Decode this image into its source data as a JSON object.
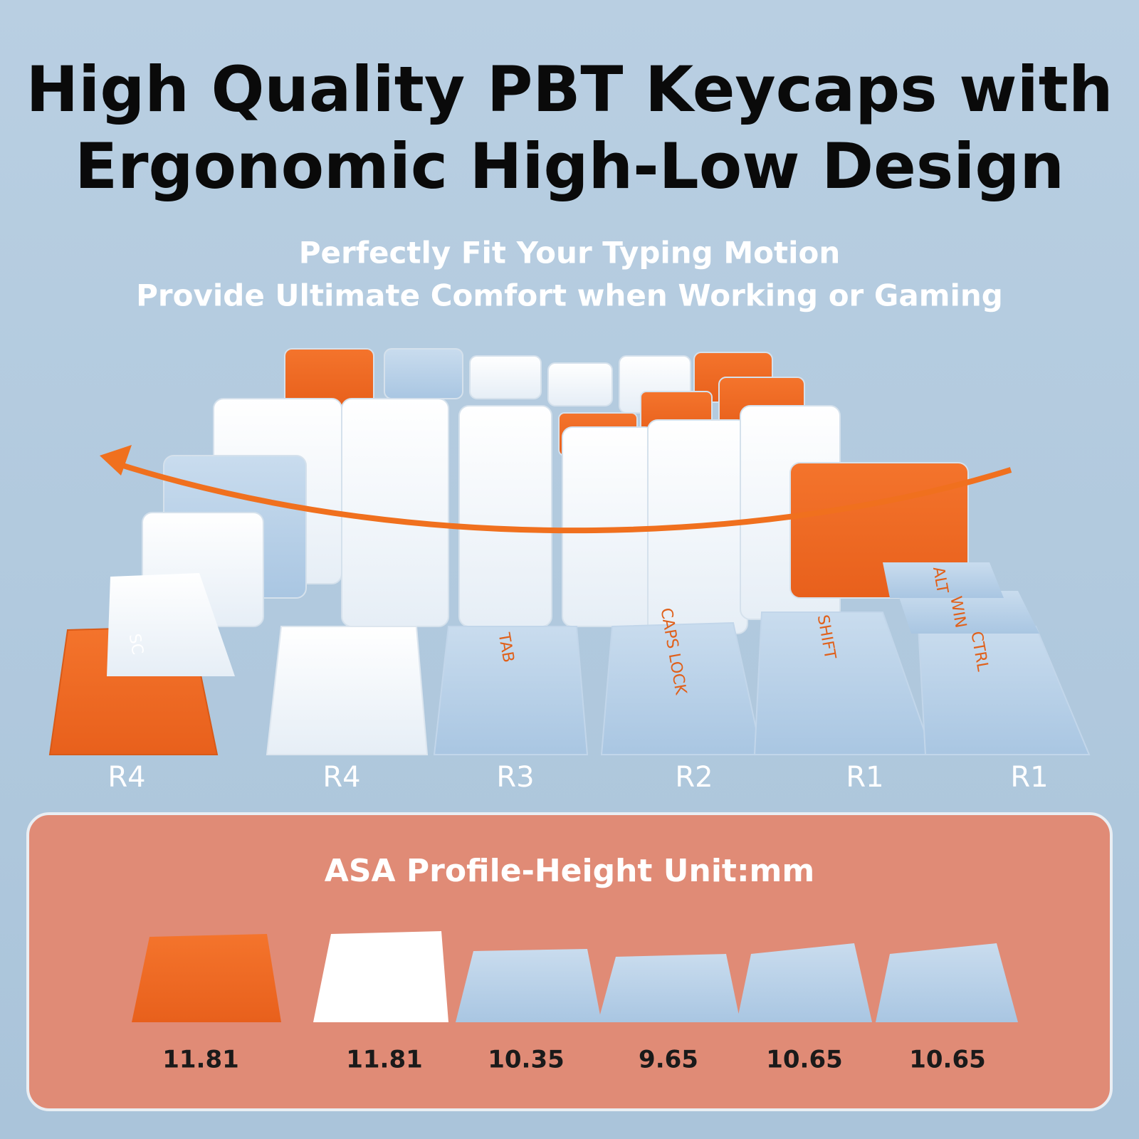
{
  "header": {
    "title_lines": [
      "High Quality PBT Keycaps with",
      "Ergonomic High-Low Design"
    ],
    "subtitle_lines": [
      "Perfectly Fit Your Typing Motion",
      "Provide Ultimate Comfort when Working or Gaming"
    ]
  },
  "keyboard": {
    "key_legends": [
      "SC",
      "TAB",
      "CAPS LOCK",
      "SHIFT",
      "CTRL",
      "WIN",
      "ALT"
    ],
    "row_labels": [
      "R4",
      "R4",
      "R3",
      "R2",
      "R1",
      "R1"
    ]
  },
  "profile_panel": {
    "title": "ASA Profile-Height Unit:mm",
    "heights": [
      11.81,
      11.81,
      10.35,
      9.65,
      10.65,
      10.65
    ]
  }
}
